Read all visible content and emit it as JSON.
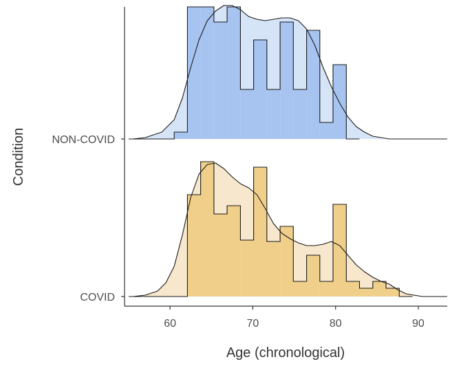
{
  "chart_data": {
    "type": "ridgeline-histogram",
    "xlabel": "Age (chronological)",
    "ylabel": "Condition",
    "xlim": [
      54.5,
      93.5
    ],
    "x_ticks": [
      "60",
      "70",
      "80",
      "90"
    ],
    "x_tick_values": [
      60,
      70,
      80,
      90
    ],
    "grid": false,
    "bin_width": 1.6,
    "series": [
      {
        "name": "NON-COVID",
        "fill": "#a7c4f0",
        "density_fill": "#d6e4f7",
        "bins": [
          {
            "start": 60.5,
            "count": 0.05
          },
          {
            "start": 62.1,
            "count": 0.96
          },
          {
            "start": 63.7,
            "count": 0.96
          },
          {
            "start": 65.3,
            "count": 0.85
          },
          {
            "start": 66.9,
            "count": 0.96
          },
          {
            "start": 68.5,
            "count": 0.36
          },
          {
            "start": 70.1,
            "count": 0.72
          },
          {
            "start": 71.7,
            "count": 0.36
          },
          {
            "start": 73.3,
            "count": 0.85
          },
          {
            "start": 74.9,
            "count": 0.36
          },
          {
            "start": 76.5,
            "count": 0.79
          },
          {
            "start": 78.1,
            "count": 0.12
          },
          {
            "start": 79.7,
            "count": 0.54
          },
          {
            "start": 81.3,
            "count": 0.0
          }
        ],
        "density_x": [
          55.5,
          57,
          59,
          60.5,
          61.5,
          62.5,
          63.5,
          64.5,
          65.5,
          66.5,
          67.5,
          68.5,
          69.5,
          70.5,
          71.5,
          72.5,
          73.5,
          74.5,
          75.5,
          76.5,
          77.5,
          78.5,
          79.5,
          80.5,
          81.5,
          82.5,
          83.5,
          84.5,
          85.5,
          86.5
        ],
        "density_y": [
          0.0,
          0.01,
          0.05,
          0.14,
          0.3,
          0.52,
          0.72,
          0.86,
          0.93,
          0.97,
          0.97,
          0.94,
          0.89,
          0.87,
          0.86,
          0.87,
          0.88,
          0.88,
          0.86,
          0.8,
          0.68,
          0.52,
          0.38,
          0.26,
          0.16,
          0.09,
          0.05,
          0.02,
          0.01,
          0.0
        ]
      },
      {
        "name": "COVID",
        "fill": "#f0cf8a",
        "density_fill": "#f7e7cc",
        "bins": [
          {
            "start": 60.5,
            "count": 0.0
          },
          {
            "start": 62.1,
            "count": 0.74
          },
          {
            "start": 63.7,
            "count": 0.98
          },
          {
            "start": 65.3,
            "count": 0.6
          },
          {
            "start": 66.9,
            "count": 0.66
          },
          {
            "start": 68.5,
            "count": 0.41
          },
          {
            "start": 70.1,
            "count": 0.94
          },
          {
            "start": 71.7,
            "count": 0.4
          },
          {
            "start": 73.3,
            "count": 0.51
          },
          {
            "start": 74.9,
            "count": 0.11
          },
          {
            "start": 76.5,
            "count": 0.3
          },
          {
            "start": 78.1,
            "count": 0.11
          },
          {
            "start": 79.7,
            "count": 0.67
          },
          {
            "start": 81.3,
            "count": 0.11
          },
          {
            "start": 82.9,
            "count": 0.06
          },
          {
            "start": 84.5,
            "count": 0.11
          },
          {
            "start": 86.1,
            "count": 0.06
          },
          {
            "start": 87.7,
            "count": 0.0
          }
        ],
        "density_x": [
          55.5,
          57,
          58.5,
          59.5,
          60.5,
          61.5,
          62.5,
          63.5,
          64.5,
          65.5,
          66.5,
          67.5,
          68.5,
          69.5,
          70.5,
          71.5,
          72.5,
          73.5,
          74.5,
          75.5,
          76.5,
          77.5,
          78.5,
          79.5,
          80.5,
          81.5,
          82.5,
          83.5,
          84.5,
          85.5,
          86.5,
          87.5,
          88.5,
          89.5,
          90.5,
          91.5
        ],
        "density_y": [
          0.0,
          0.01,
          0.04,
          0.1,
          0.22,
          0.45,
          0.72,
          0.89,
          0.96,
          0.97,
          0.93,
          0.87,
          0.82,
          0.79,
          0.74,
          0.64,
          0.53,
          0.46,
          0.42,
          0.39,
          0.37,
          0.37,
          0.38,
          0.4,
          0.37,
          0.3,
          0.23,
          0.18,
          0.14,
          0.11,
          0.09,
          0.05,
          0.02,
          0.01,
          0.0,
          0.0
        ]
      }
    ]
  }
}
